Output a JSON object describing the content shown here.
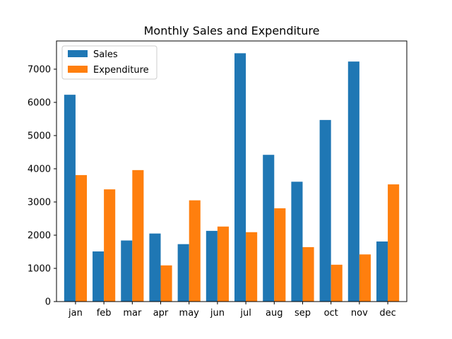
{
  "chart_data": {
    "type": "bar",
    "title": "Monthly Sales and Expenditure",
    "xlabel": "",
    "ylabel": "",
    "categories": [
      "jan",
      "feb",
      "mar",
      "apr",
      "may",
      "jun",
      "jul",
      "aug",
      "sep",
      "oct",
      "nov",
      "dec"
    ],
    "series": [
      {
        "name": "Sales",
        "color": "#1f77b4",
        "values": [
          6230,
          1510,
          1840,
          2050,
          1730,
          2130,
          7480,
          4420,
          3610,
          5470,
          7230,
          1810
        ]
      },
      {
        "name": "Expenditure",
        "color": "#ff7f0e",
        "values": [
          3810,
          3380,
          3960,
          1090,
          3050,
          2260,
          2090,
          2810,
          1640,
          1110,
          1420,
          3530
        ]
      }
    ],
    "ylim": [
      0,
      7850
    ],
    "yticks": [
      0,
      1000,
      2000,
      3000,
      4000,
      5000,
      6000,
      7000
    ],
    "legend_position": "top-left",
    "grid": false
  }
}
